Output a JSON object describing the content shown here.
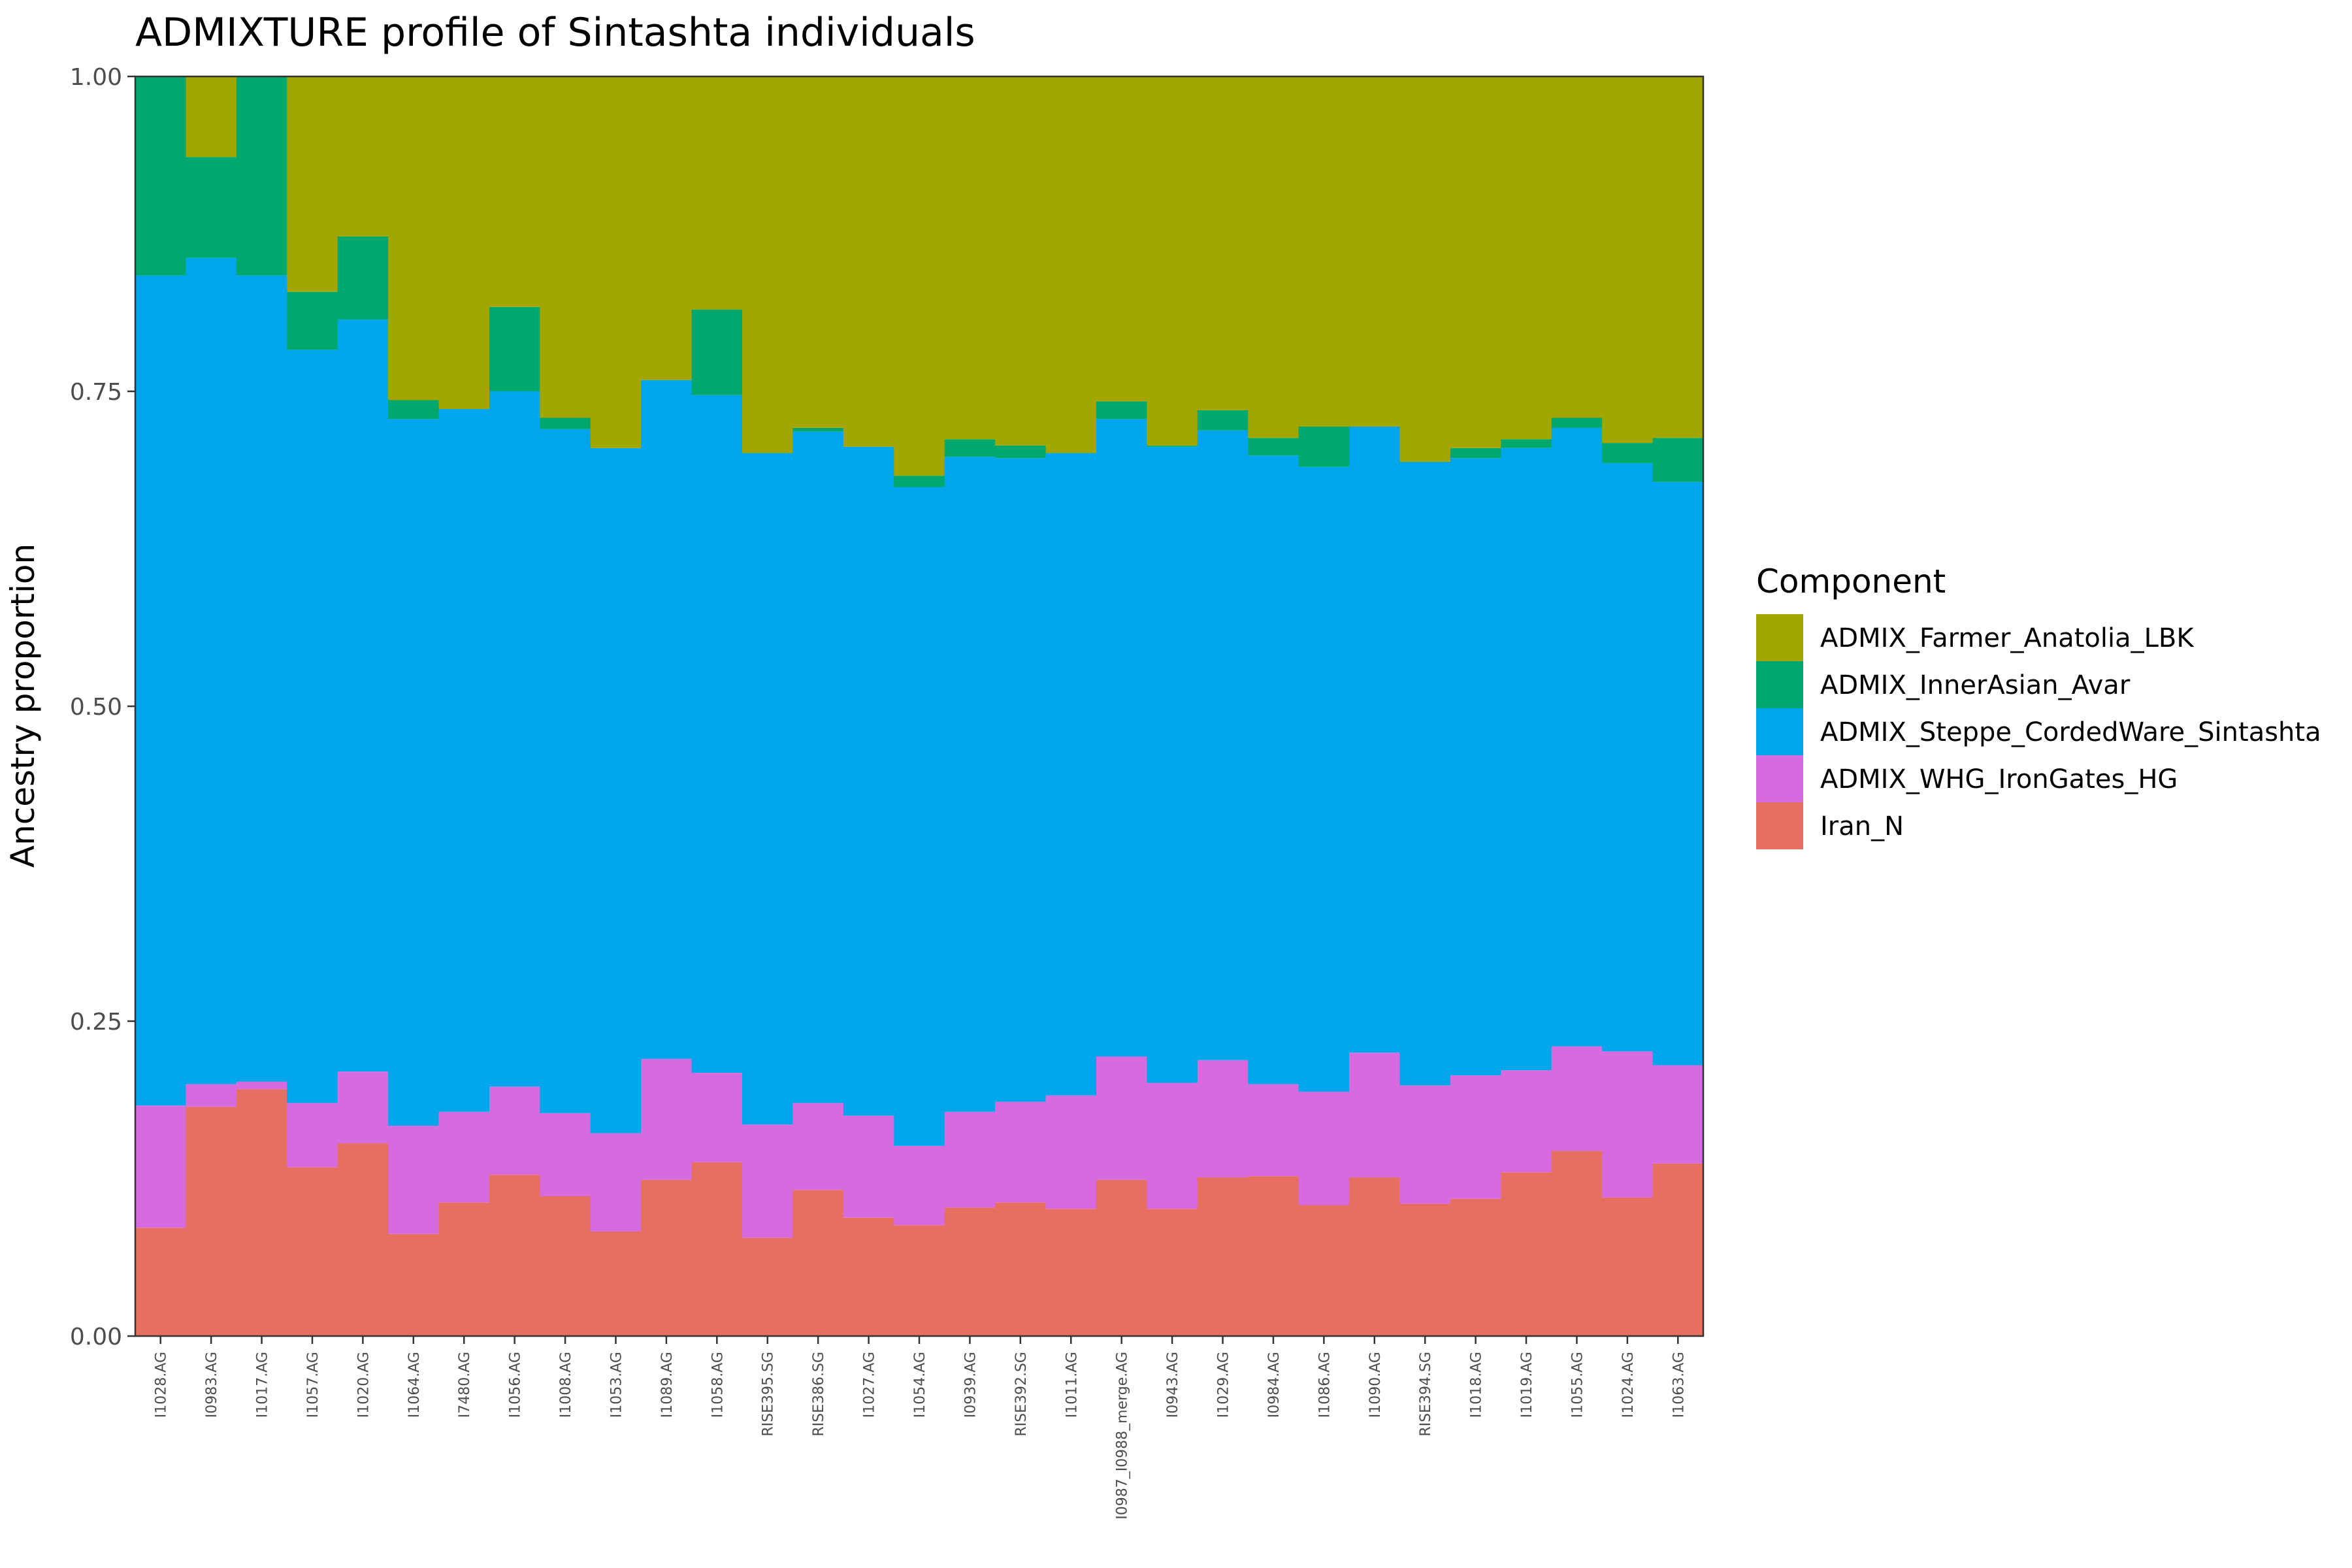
{
  "chart_data": {
    "type": "bar",
    "stacked": true,
    "title": "ADMIXTURE profile of Sintashta individuals",
    "xlabel": "",
    "ylabel": "Ancestry proportion",
    "ylim": [
      0,
      1
    ],
    "yticks": [
      "0.00",
      "0.25",
      "0.50",
      "0.75",
      "1.00"
    ],
    "grid": false,
    "legend_position": "right",
    "legend_title": "Component",
    "categories": [
      "I1028.AG",
      "I0983.AG",
      "I1017.AG",
      "I1057.AG",
      "I1020.AG",
      "I1064.AG",
      "I7480.AG",
      "I1056.AG",
      "I1008.AG",
      "I1053.AG",
      "I1089.AG",
      "I1058.AG",
      "RISE395.SG",
      "RISE386.SG",
      "I1027.AG",
      "I1054.AG",
      "I0939.AG",
      "RISE392.SG",
      "I1011.AG",
      "I0987_I0988_merge.AG",
      "I0943.AG",
      "I1029.AG",
      "I0984.AG",
      "I1086.AG",
      "I1090.AG",
      "RISE394.SG",
      "I1018.AG",
      "I1019.AG",
      "I1055.AG",
      "I1024.AG",
      "I1063.AG"
    ],
    "legend_order": [
      "ADMIX_Farmer_Anatolia_LBK",
      "ADMIX_InnerAsian_Avar",
      "ADMIX_Steppe_CordedWare_Sintashta",
      "ADMIX_WHG_IronGates_HG",
      "Iran_N"
    ],
    "series": [
      {
        "name": "Iran_N",
        "color": "#E76F61",
        "values": [
          0.086,
          0.182,
          0.196,
          0.134,
          0.153,
          0.081,
          0.106,
          0.128,
          0.111,
          0.083,
          0.124,
          0.138,
          0.078,
          0.116,
          0.094,
          0.088,
          0.102,
          0.106,
          0.101,
          0.124,
          0.101,
          0.126,
          0.127,
          0.104,
          0.126,
          0.105,
          0.109,
          0.13,
          0.147,
          0.11,
          0.137
        ]
      },
      {
        "name": "ADMIX_WHG_IronGates_HG",
        "color": "#D66BE0",
        "values": [
          0.097,
          0.018,
          0.006,
          0.051,
          0.057,
          0.086,
          0.072,
          0.07,
          0.066,
          0.078,
          0.096,
          0.071,
          0.09,
          0.069,
          0.081,
          0.063,
          0.076,
          0.08,
          0.09,
          0.098,
          0.1,
          0.093,
          0.073,
          0.09,
          0.099,
          0.094,
          0.098,
          0.081,
          0.083,
          0.116,
          0.078
        ]
      },
      {
        "name": "ADMIX_Steppe_CordedWare_Sintashta",
        "color": "#00A6EC",
        "values": [
          0.659,
          0.656,
          0.64,
          0.598,
          0.597,
          0.561,
          0.558,
          0.552,
          0.543,
          0.544,
          0.539,
          0.538,
          0.533,
          0.533,
          0.531,
          0.523,
          0.52,
          0.511,
          0.51,
          0.506,
          0.505,
          0.5,
          0.499,
          0.496,
          0.497,
          0.495,
          0.49,
          0.494,
          0.491,
          0.467,
          0.463
        ]
      },
      {
        "name": "ADMIX_InnerAsian_Avar",
        "color": "#00A86E",
        "values": [
          0.158,
          0.08,
          0.158,
          0.046,
          0.066,
          0.015,
          0.0,
          0.067,
          0.009,
          0.0,
          0.0,
          0.068,
          0.0,
          0.003,
          0.0,
          0.009,
          0.014,
          0.01,
          0.0,
          0.014,
          0.001,
          0.016,
          0.014,
          0.032,
          0.0,
          0.0,
          0.008,
          0.007,
          0.008,
          0.016,
          0.035
        ]
      },
      {
        "name": "ADMIX_Farmer_Anatolia_LBK",
        "color": "#A3A500",
        "values": [
          0.0,
          0.064,
          0.0,
          0.171,
          0.127,
          0.257,
          0.264,
          0.183,
          0.271,
          0.295,
          0.241,
          0.185,
          0.299,
          0.279,
          0.294,
          0.317,
          0.288,
          0.293,
          0.299,
          0.258,
          0.293,
          0.265,
          0.287,
          0.278,
          0.278,
          0.306,
          0.295,
          0.288,
          0.271,
          0.291,
          0.287
        ]
      }
    ]
  }
}
